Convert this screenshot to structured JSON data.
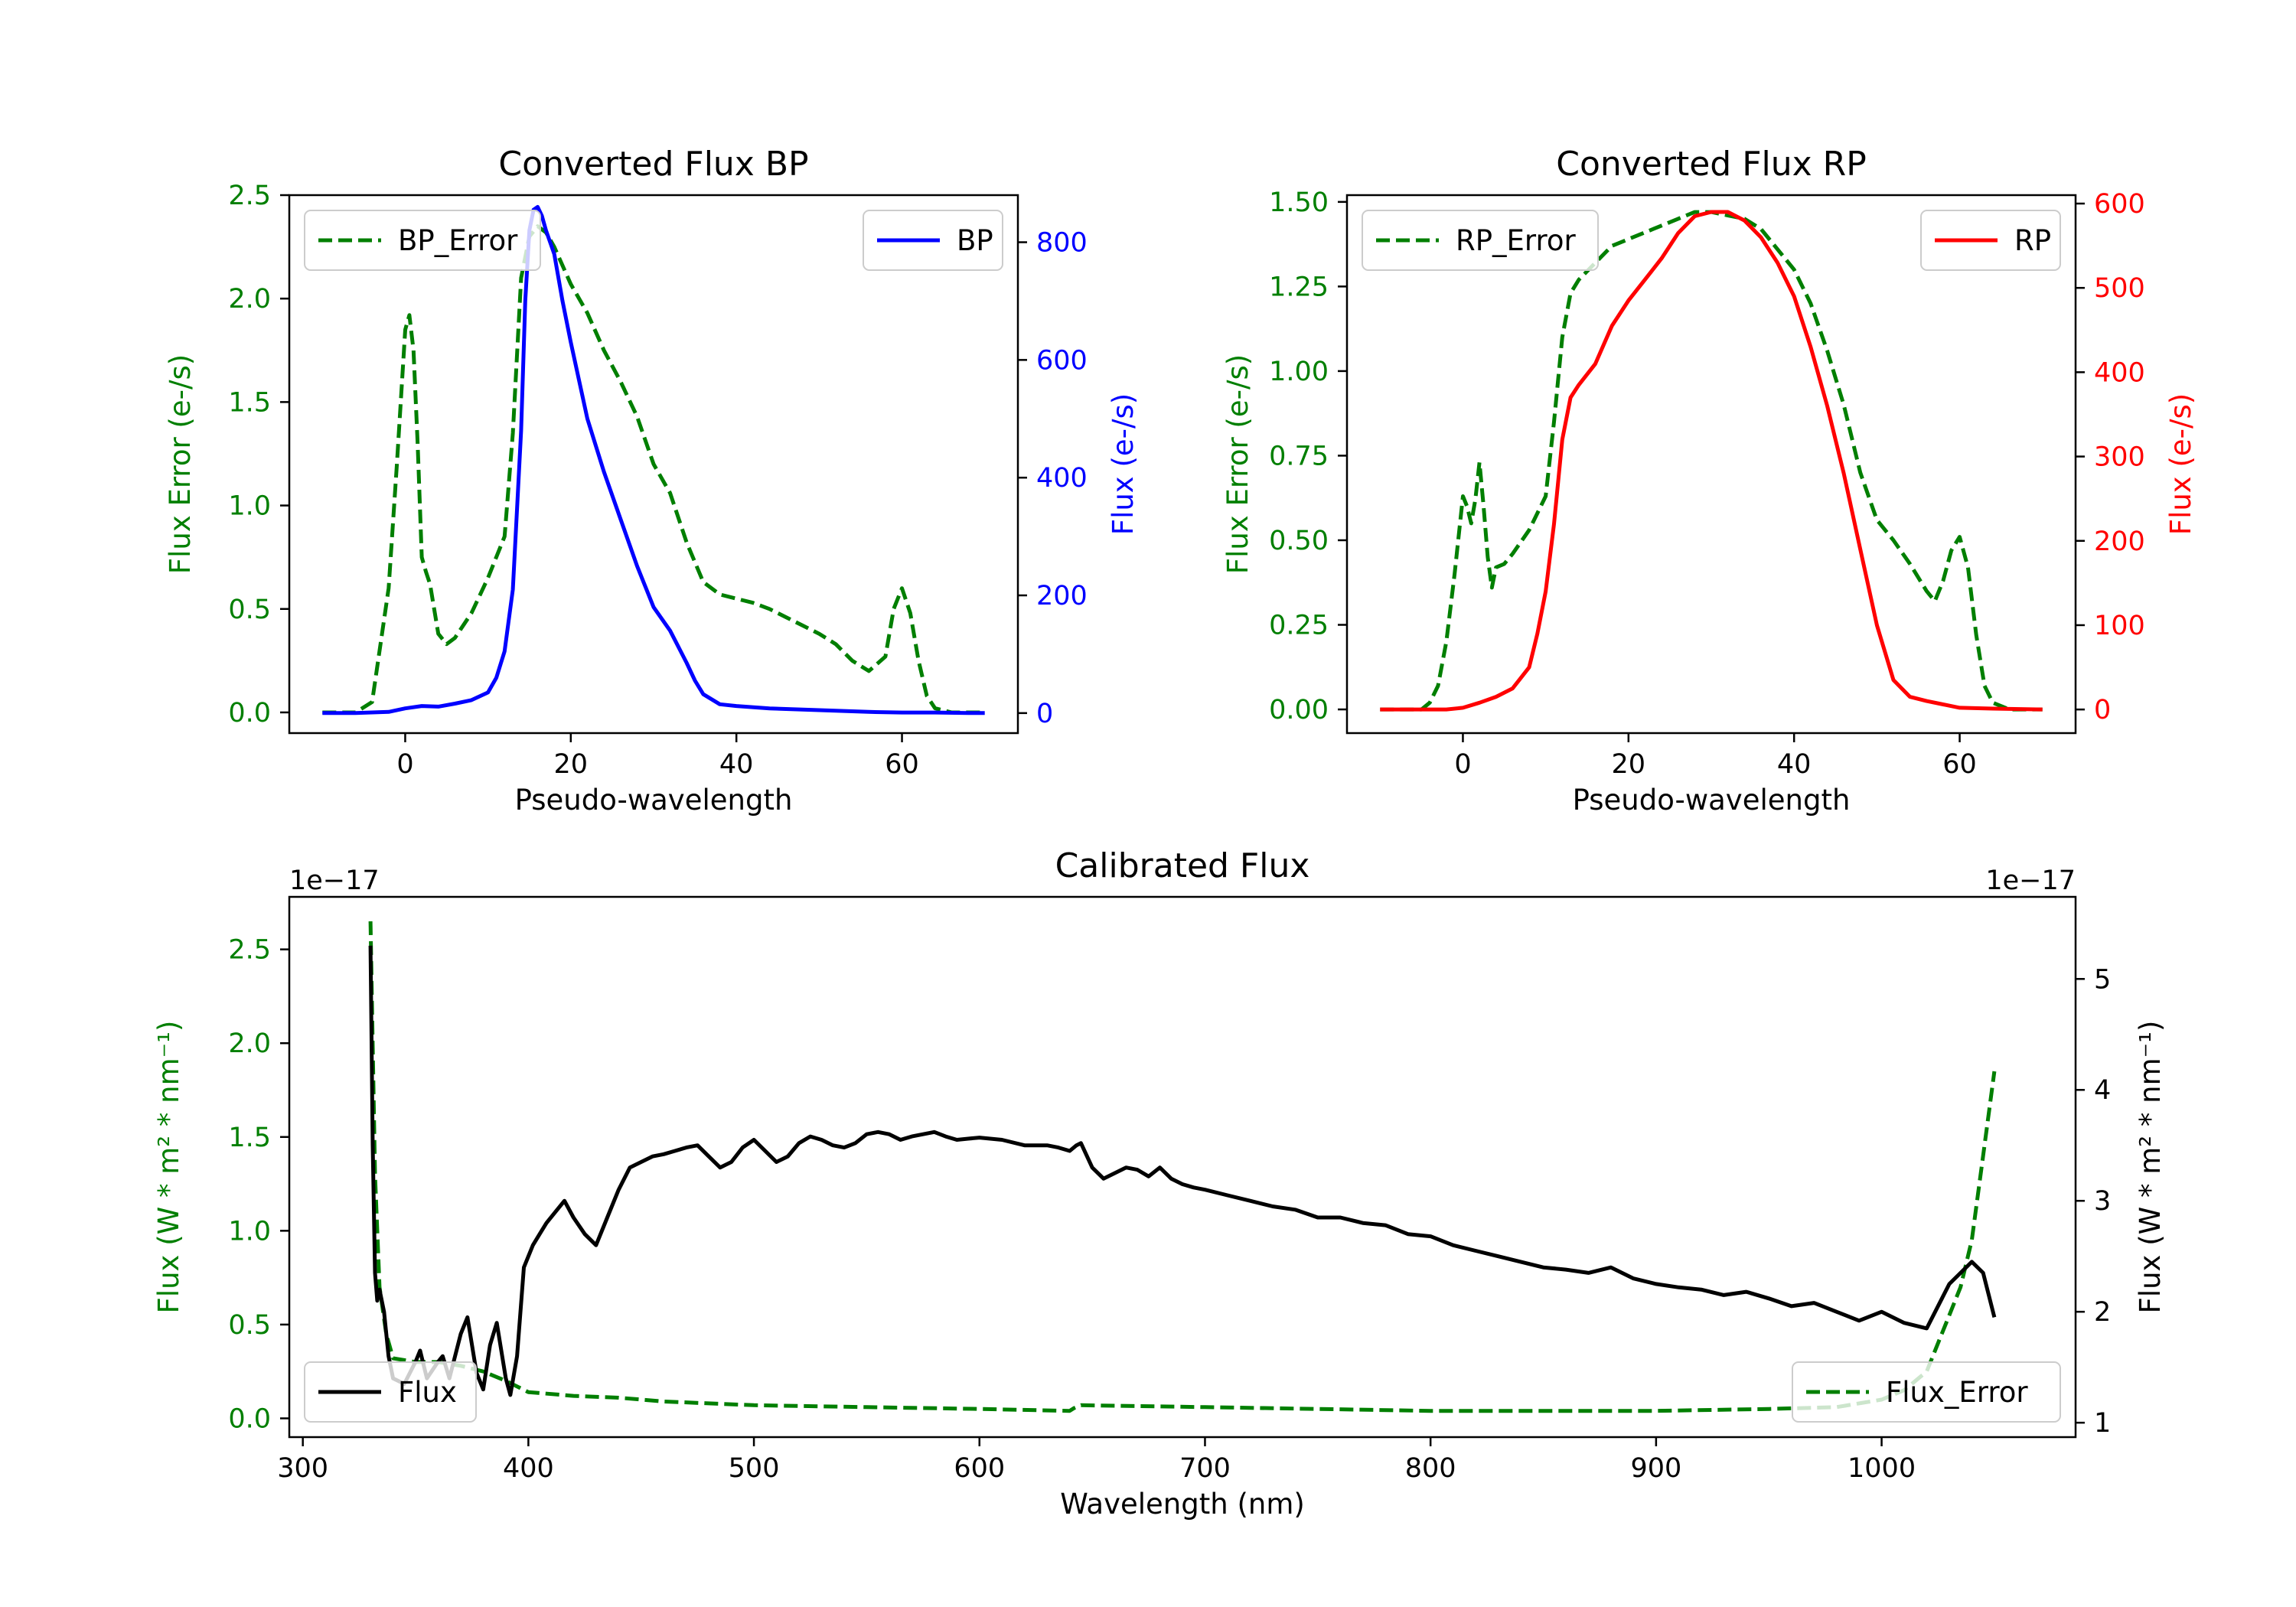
{
  "colors": {
    "green": "#007f00",
    "blue": "#0000ff",
    "red": "#ff0000",
    "black": "#000000"
  },
  "chart_data": [
    {
      "type": "line",
      "title": "Converted Flux BP",
      "xlabel": "Pseudo-wavelength",
      "ylabel_left": "Flux Error (e-/s)",
      "ylabel_right": "Flux (e-/s)",
      "xlim": [
        -14,
        74
      ],
      "ylim_left": [
        -0.1,
        2.5
      ],
      "ylim_right": [
        -34,
        880
      ],
      "xticks": [
        "0",
        "20",
        "40",
        "60"
      ],
      "yticks_left": [
        "0.0",
        "0.5",
        "1.0",
        "1.5",
        "2.0",
        "2.5"
      ],
      "yticks_right": [
        "0",
        "200",
        "400",
        "600",
        "800"
      ],
      "series": [
        {
          "name": "BP_Error",
          "axis": "left",
          "style": "dashed",
          "color": "#007f00",
          "x": [
            -10,
            -6,
            -4,
            -2,
            -1,
            0,
            0.5,
            1,
            1.5,
            2,
            2.5,
            3,
            3.5,
            4,
            5,
            6,
            8,
            10,
            12,
            13,
            14,
            15,
            16,
            17,
            18,
            20,
            22,
            24,
            26,
            28,
            30,
            32,
            34,
            36,
            38,
            40,
            42,
            44,
            46,
            48,
            50,
            52,
            54,
            56,
            58,
            59,
            60,
            61,
            62,
            63,
            64,
            66,
            70
          ],
          "y": [
            0.0,
            0.0,
            0.05,
            0.6,
            1.2,
            1.85,
            1.92,
            1.75,
            1.3,
            0.75,
            0.68,
            0.62,
            0.5,
            0.38,
            0.33,
            0.36,
            0.48,
            0.65,
            0.85,
            1.35,
            2.1,
            2.3,
            2.35,
            2.32,
            2.25,
            2.07,
            1.93,
            1.75,
            1.6,
            1.43,
            1.2,
            1.06,
            0.82,
            0.63,
            0.57,
            0.55,
            0.53,
            0.5,
            0.46,
            0.42,
            0.38,
            0.33,
            0.25,
            0.2,
            0.27,
            0.5,
            0.6,
            0.48,
            0.25,
            0.08,
            0.02,
            0.0,
            0.0
          ]
        },
        {
          "name": "BP",
          "axis": "right",
          "style": "solid",
          "color": "#0000ff",
          "x": [
            -10,
            -6,
            -2,
            0,
            2,
            4,
            6,
            8,
            10,
            11,
            12,
            13,
            14,
            14.5,
            15,
            15.5,
            16,
            16.5,
            17,
            18,
            19,
            20,
            22,
            24,
            26,
            28,
            30,
            32,
            34,
            35,
            36,
            38,
            40,
            44,
            48,
            52,
            56,
            60,
            64,
            68,
            70
          ],
          "y": [
            0,
            0,
            2,
            8,
            12,
            11,
            16,
            22,
            35,
            60,
            105,
            210,
            480,
            700,
            820,
            855,
            860,
            845,
            820,
            780,
            700,
            630,
            500,
            410,
            330,
            250,
            180,
            140,
            85,
            55,
            32,
            15,
            12,
            8,
            6,
            4,
            2,
            1,
            1,
            0,
            0
          ]
        }
      ],
      "legend": {
        "left": "BP_Error",
        "right": "BP"
      }
    },
    {
      "type": "line",
      "title": "Converted Flux RP",
      "xlabel": "Pseudo-wavelength",
      "ylabel_left": "Flux Error (e-/s)",
      "ylabel_right": "Flux (e-/s)",
      "xlim": [
        -14,
        74
      ],
      "ylim_left": [
        -0.07,
        1.52
      ],
      "ylim_right": [
        -28,
        610
      ],
      "xticks": [
        "0",
        "20",
        "40",
        "60"
      ],
      "yticks_left": [
        "0.00",
        "0.25",
        "0.50",
        "0.75",
        "1.00",
        "1.25",
        "1.50"
      ],
      "yticks_right": [
        "0",
        "100",
        "200",
        "300",
        "400",
        "500",
        "600"
      ],
      "series": [
        {
          "name": "RP_Error",
          "axis": "left",
          "style": "dashed",
          "color": "#007f00",
          "x": [
            -10,
            -5,
            -4,
            -3,
            -2,
            -1,
            0,
            0.5,
            1,
            1.5,
            2,
            2.5,
            3,
            3.5,
            4,
            5,
            6,
            8,
            10,
            11,
            12,
            13,
            14,
            16,
            18,
            20,
            22,
            24,
            26,
            28,
            30,
            32,
            34,
            36,
            38,
            40,
            42,
            44,
            46,
            48,
            50,
            52,
            54,
            56,
            57,
            58,
            59,
            60,
            61,
            62,
            63,
            64,
            66,
            70
          ],
          "y": [
            0.0,
            0.0,
            0.02,
            0.07,
            0.2,
            0.4,
            0.63,
            0.6,
            0.55,
            0.62,
            0.73,
            0.6,
            0.45,
            0.36,
            0.42,
            0.43,
            0.46,
            0.53,
            0.63,
            0.85,
            1.1,
            1.23,
            1.27,
            1.32,
            1.37,
            1.39,
            1.41,
            1.43,
            1.45,
            1.47,
            1.47,
            1.46,
            1.45,
            1.42,
            1.36,
            1.3,
            1.2,
            1.06,
            0.9,
            0.7,
            0.56,
            0.5,
            0.43,
            0.35,
            0.32,
            0.38,
            0.47,
            0.51,
            0.42,
            0.22,
            0.07,
            0.02,
            0.0,
            0.0
          ]
        },
        {
          "name": "RP",
          "axis": "right",
          "style": "solid",
          "color": "#ff0000",
          "x": [
            -10,
            -6,
            -2,
            0,
            2,
            4,
            6,
            8,
            9,
            10,
            11,
            12,
            13,
            14,
            16,
            18,
            20,
            22,
            24,
            26,
            28,
            30,
            32,
            34,
            36,
            38,
            40,
            42,
            44,
            46,
            48,
            50,
            52,
            54,
            56,
            58,
            60,
            64,
            70
          ],
          "y": [
            0,
            0,
            0,
            2,
            8,
            15,
            25,
            50,
            90,
            140,
            220,
            320,
            370,
            385,
            410,
            455,
            485,
            510,
            535,
            565,
            585,
            590,
            590,
            580,
            560,
            530,
            490,
            430,
            360,
            280,
            190,
            100,
            35,
            15,
            10,
            6,
            2,
            1,
            0
          ]
        }
      ],
      "legend": {
        "left": "RP_Error",
        "right": "RP"
      }
    },
    {
      "type": "line",
      "title": "Calibrated Flux",
      "xlabel": "Wavelength (nm)",
      "ylabel_left": "Flux (W * m² * nm⁻¹)",
      "ylabel_right": "Flux (W * m² * nm⁻¹)",
      "offset_left": "1e−17",
      "offset_right": "1e−17",
      "xlim": [
        294,
        1086
      ],
      "ylim_left": [
        -0.1,
        2.78
      ],
      "ylim_right": [
        0.87,
        5.74
      ],
      "xticks": [
        "300",
        "400",
        "500",
        "600",
        "700",
        "800",
        "900",
        "1000"
      ],
      "yticks_left": [
        "0.0",
        "0.5",
        "1.0",
        "1.5",
        "2.0",
        "2.5"
      ],
      "yticks_right": [
        "1",
        "2",
        "3",
        "4",
        "5"
      ],
      "series": [
        {
          "name": "Flux_Error",
          "axis": "left",
          "style": "dashed",
          "color": "#007f00",
          "x": [
            330,
            332,
            334,
            337,
            340,
            350,
            360,
            370,
            380,
            390,
            400,
            420,
            440,
            460,
            480,
            500,
            550,
            600,
            640,
            642,
            645,
            700,
            750,
            800,
            850,
            900,
            950,
            980,
            1000,
            1010,
            1020,
            1025,
            1030,
            1035,
            1040,
            1045,
            1050
          ],
          "y": [
            2.65,
            1.3,
            0.7,
            0.45,
            0.32,
            0.3,
            0.3,
            0.28,
            0.25,
            0.2,
            0.14,
            0.12,
            0.11,
            0.09,
            0.08,
            0.07,
            0.06,
            0.05,
            0.04,
            0.055,
            0.07,
            0.06,
            0.05,
            0.04,
            0.04,
            0.04,
            0.05,
            0.06,
            0.1,
            0.15,
            0.25,
            0.4,
            0.55,
            0.7,
            0.95,
            1.4,
            1.85
          ]
        },
        {
          "name": "Flux",
          "axis": "right",
          "style": "solid",
          "color": "#000000",
          "x": [
            330,
            331,
            332,
            333,
            334,
            336,
            338,
            340,
            345,
            350,
            352,
            355,
            360,
            362,
            365,
            370,
            373,
            377,
            380,
            383,
            386,
            390,
            392,
            395,
            398,
            402,
            405,
            408,
            412,
            416,
            420,
            425,
            430,
            435,
            440,
            445,
            450,
            455,
            460,
            465,
            470,
            475,
            480,
            485,
            490,
            495,
            500,
            505,
            510,
            515,
            520,
            525,
            530,
            535,
            540,
            545,
            550,
            555,
            560,
            565,
            570,
            575,
            580,
            585,
            590,
            595,
            600,
            610,
            620,
            630,
            635,
            640,
            643,
            645,
            650,
            655,
            660,
            665,
            670,
            675,
            680,
            685,
            690,
            695,
            700,
            710,
            720,
            730,
            740,
            750,
            760,
            770,
            780,
            790,
            800,
            810,
            820,
            830,
            840,
            850,
            860,
            870,
            880,
            890,
            900,
            910,
            920,
            930,
            940,
            950,
            960,
            970,
            980,
            990,
            1000,
            1010,
            1020,
            1030,
            1040,
            1045,
            1050
          ],
          "y": [
            5.3,
            3.5,
            2.35,
            2.1,
            2.2,
            2.0,
            1.6,
            1.4,
            1.35,
            1.55,
            1.65,
            1.4,
            1.55,
            1.6,
            1.4,
            1.8,
            1.95,
            1.45,
            1.3,
            1.7,
            1.9,
            1.4,
            1.25,
            1.6,
            2.4,
            2.6,
            2.7,
            2.8,
            2.9,
            3.0,
            2.85,
            2.7,
            2.6,
            2.85,
            3.1,
            3.3,
            3.35,
            3.4,
            3.42,
            3.45,
            3.48,
            3.5,
            3.4,
            3.3,
            3.35,
            3.48,
            3.55,
            3.45,
            3.35,
            3.4,
            3.52,
            3.58,
            3.55,
            3.5,
            3.48,
            3.52,
            3.6,
            3.62,
            3.6,
            3.55,
            3.58,
            3.6,
            3.62,
            3.58,
            3.55,
            3.56,
            3.57,
            3.55,
            3.5,
            3.5,
            3.48,
            3.45,
            3.5,
            3.52,
            3.3,
            3.2,
            3.25,
            3.3,
            3.28,
            3.22,
            3.3,
            3.2,
            3.15,
            3.12,
            3.1,
            3.05,
            3.0,
            2.95,
            2.92,
            2.85,
            2.85,
            2.8,
            2.78,
            2.7,
            2.68,
            2.6,
            2.55,
            2.5,
            2.45,
            2.4,
            2.38,
            2.35,
            2.4,
            2.3,
            2.25,
            2.22,
            2.2,
            2.15,
            2.18,
            2.12,
            2.05,
            2.08,
            2.0,
            1.92,
            2.0,
            1.9,
            1.85,
            2.25,
            2.45,
            2.35,
            1.95
          ]
        }
      ],
      "legend": {
        "left": "Flux",
        "right": "Flux_Error"
      }
    }
  ]
}
